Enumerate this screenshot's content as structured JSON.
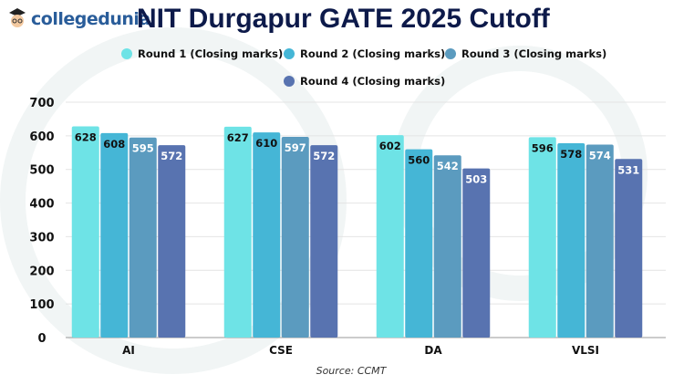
{
  "brand": {
    "name": "collegedunia"
  },
  "chart_data": {
    "type": "bar",
    "title": "NIT Durgapur GATE 2025 Cutoff",
    "categories": [
      "AI",
      "CSE",
      "DA",
      "VLSI"
    ],
    "series": [
      {
        "name": "Round 1 (Closing marks)",
        "color": "#6ee3e6",
        "label_color": "#111111",
        "values": [
          628,
          627,
          602,
          596
        ]
      },
      {
        "name": "Round 2 (Closing marks)",
        "color": "#45b6d6",
        "label_color": "#111111",
        "values": [
          608,
          610,
          560,
          578
        ]
      },
      {
        "name": "Round 3 (Closing marks)",
        "color": "#5b9bbf",
        "label_color": "#ffffff",
        "values": [
          595,
          597,
          542,
          574
        ]
      },
      {
        "name": "Round 4 (Closing marks)",
        "color": "#5873b0",
        "label_color": "#ffffff",
        "values": [
          572,
          572,
          503,
          531
        ]
      }
    ],
    "yticks": [
      0,
      100,
      200,
      300,
      400,
      500,
      600,
      700
    ],
    "ylim": [
      0,
      700
    ],
    "grid": true,
    "legend": "top",
    "source": "Source: CCMT"
  }
}
